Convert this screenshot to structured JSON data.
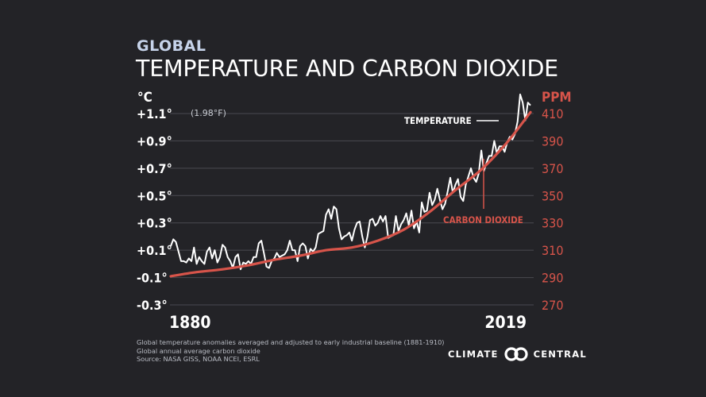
{
  "title": {
    "small": "GLOBAL",
    "main": "TEMPERATURE AND CARBON DIOXIDE"
  },
  "colors": {
    "background": "#232327",
    "temperature": "#ffffff",
    "co2": "#d7544a",
    "grid": "#4a4a50"
  },
  "chart_data": {
    "type": "line",
    "title": "TEMPERATURE AND CARBON DIOXIDE",
    "x_range": [
      1880,
      2019
    ],
    "x_tick_labels": [
      "1880",
      "2019"
    ],
    "left_axis": {
      "unit_label": "°C",
      "range": [
        -0.3,
        1.1
      ],
      "ticks": [
        {
          "value": 1.1,
          "label": "+1.1°"
        },
        {
          "value": 0.9,
          "label": "+0.9°"
        },
        {
          "value": 0.7,
          "label": "+0.7°"
        },
        {
          "value": 0.5,
          "label": "+0.5°"
        },
        {
          "value": 0.3,
          "label": "+0.3°"
        },
        {
          "value": 0.1,
          "label": "+0.1°"
        },
        {
          "value": -0.1,
          "label": "-0.1°"
        },
        {
          "value": -0.3,
          "label": "-0.3°"
        }
      ],
      "top_tick_note": "(1.98°F)"
    },
    "right_axis": {
      "unit_label": "PPM",
      "range": [
        270,
        410
      ],
      "ticks": [
        "410",
        "390",
        "370",
        "350",
        "330",
        "310",
        "290",
        "270"
      ]
    },
    "series": [
      {
        "name": "TEMPERATURE",
        "axis": "left",
        "x_start": 1880,
        "values": [
          0.13,
          0.18,
          0.16,
          0.09,
          0.02,
          0.02,
          0.01,
          0.04,
          0.02,
          0.12,
          0.0,
          0.05,
          0.02,
          0.0,
          0.09,
          0.12,
          0.04,
          0.1,
          0.01,
          0.05,
          0.14,
          0.12,
          0.05,
          0.02,
          -0.03,
          0.05,
          0.07,
          -0.04,
          0.01,
          0.0,
          0.02,
          0.0,
          0.05,
          0.05,
          0.15,
          0.17,
          0.08,
          -0.02,
          -0.03,
          0.02,
          0.04,
          0.08,
          0.05,
          0.06,
          0.07,
          0.1,
          0.17,
          0.1,
          0.1,
          0.02,
          0.13,
          0.15,
          0.13,
          0.04,
          0.11,
          0.09,
          0.12,
          0.22,
          0.23,
          0.24,
          0.36,
          0.4,
          0.33,
          0.42,
          0.4,
          0.26,
          0.18,
          0.2,
          0.21,
          0.23,
          0.17,
          0.25,
          0.3,
          0.31,
          0.2,
          0.12,
          0.2,
          0.32,
          0.33,
          0.28,
          0.3,
          0.35,
          0.31,
          0.35,
          0.19,
          0.2,
          0.21,
          0.35,
          0.24,
          0.29,
          0.32,
          0.37,
          0.28,
          0.39,
          0.26,
          0.31,
          0.23,
          0.45,
          0.38,
          0.39,
          0.52,
          0.43,
          0.47,
          0.55,
          0.47,
          0.4,
          0.44,
          0.53,
          0.63,
          0.52,
          0.58,
          0.62,
          0.49,
          0.46,
          0.58,
          0.64,
          0.7,
          0.63,
          0.6,
          0.66,
          0.83,
          0.68,
          0.74,
          0.79,
          0.79,
          0.9,
          0.81,
          0.86,
          0.86,
          0.82,
          0.89,
          0.93,
          0.91,
          0.95,
          1.04,
          1.24,
          1.18,
          1.05,
          1.18,
          1.16
        ]
      },
      {
        "name": "CARBON DIOXIDE",
        "axis": "right",
        "x": [
          1880,
          1890,
          1900,
          1910,
          1920,
          1930,
          1940,
          1950,
          1960,
          1970,
          1980,
          1990,
          2000,
          2010,
          2019
        ],
        "values": [
          291,
          294,
          296,
          299,
          303,
          306,
          310,
          312,
          317,
          325,
          338,
          354,
          369,
          389,
          411
        ]
      }
    ],
    "annotations": [
      {
        "label": "TEMPERATURE",
        "series": "TEMPERATURE"
      },
      {
        "label": "CARBON DIOXIDE",
        "series": "CARBON DIOXIDE"
      }
    ],
    "grid": true
  },
  "footnotes": [
    "Global temperature anomalies averaged and adjusted to early industrial baseline (1881-1910)",
    "Global annual average carbon dioxide",
    "Source: NASA GISS, NOAA NCEI, ESRL"
  ],
  "brand": {
    "left": "CLIMATE",
    "right": "CENTRAL",
    "logo_icon": "interlocking-circles-logo-icon"
  }
}
